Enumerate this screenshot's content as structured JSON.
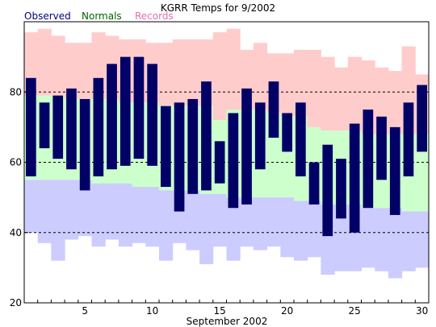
{
  "chart_data": {
    "type": "bar",
    "title": "KGRR Temps for 9/2002",
    "xlabel": "September 2002",
    "ylabel": "",
    "legend": [
      {
        "name": "Observed",
        "color": "#000080"
      },
      {
        "name": "Normals",
        "color": "#006400"
      },
      {
        "name": "Records",
        "color": "#e070b0"
      }
    ],
    "legend_placement": "top-left",
    "ylim": [
      20,
      100
    ],
    "yticks": [
      20,
      40,
      60,
      80
    ],
    "xticks": [
      5,
      10,
      15,
      20,
      25,
      30
    ],
    "gridlines_y": [
      40,
      60,
      80
    ],
    "colors": {
      "observed": "#000066",
      "normal": "#ccffcc",
      "record": "#ffcccc",
      "record_low": "#ccccff",
      "grid": "#000000"
    },
    "days": [
      1,
      2,
      3,
      4,
      5,
      6,
      7,
      8,
      9,
      10,
      11,
      12,
      13,
      14,
      15,
      16,
      17,
      18,
      19,
      20,
      21,
      22,
      23,
      24,
      25,
      26,
      27,
      28,
      29,
      30
    ],
    "series": [
      {
        "name": "Record High",
        "values": [
          97,
          98,
          96,
          94,
          94,
          97,
          96,
          95,
          95,
          94,
          94,
          95,
          95,
          95,
          97,
          98,
          92,
          94,
          91,
          91,
          92,
          92,
          90,
          87,
          90,
          89,
          87,
          86,
          93,
          85
        ]
      },
      {
        "name": "Normal High",
        "values": [
          79,
          79,
          79,
          78,
          78,
          78,
          78,
          77,
          77,
          77,
          76,
          76,
          76,
          76,
          72,
          75,
          75,
          75,
          74,
          73,
          73,
          70,
          69,
          69,
          69,
          68,
          68,
          68,
          68,
          68
        ]
      },
      {
        "name": "Normal Low",
        "values": [
          55,
          55,
          55,
          55,
          55,
          54,
          54,
          54,
          53,
          53,
          52,
          52,
          52,
          51,
          51,
          50,
          50,
          50,
          50,
          50,
          49,
          49,
          48,
          48,
          48,
          47,
          47,
          47,
          46,
          46
        ]
      },
      {
        "name": "Record Low",
        "values": [
          40,
          37,
          32,
          38,
          39,
          36,
          38,
          36,
          37,
          36,
          32,
          37,
          35,
          31,
          36,
          32,
          36,
          35,
          36,
          33,
          32,
          33,
          28,
          29,
          29,
          30,
          29,
          27,
          29,
          30
        ]
      },
      {
        "name": "Observed High",
        "values": [
          84,
          77,
          79,
          81,
          78,
          84,
          88,
          90,
          90,
          88,
          76,
          77,
          78,
          83,
          66,
          74,
          81,
          77,
          83,
          74,
          77,
          60,
          65,
          61,
          71,
          75,
          73,
          70,
          77,
          82
        ]
      },
      {
        "name": "Observed Low",
        "values": [
          56,
          64,
          61,
          58,
          52,
          56,
          58,
          59,
          61,
          59,
          53,
          46,
          51,
          52,
          54,
          47,
          48,
          58,
          67,
          63,
          56,
          48,
          39,
          44,
          40,
          47,
          55,
          45,
          56,
          63
        ]
      }
    ]
  }
}
